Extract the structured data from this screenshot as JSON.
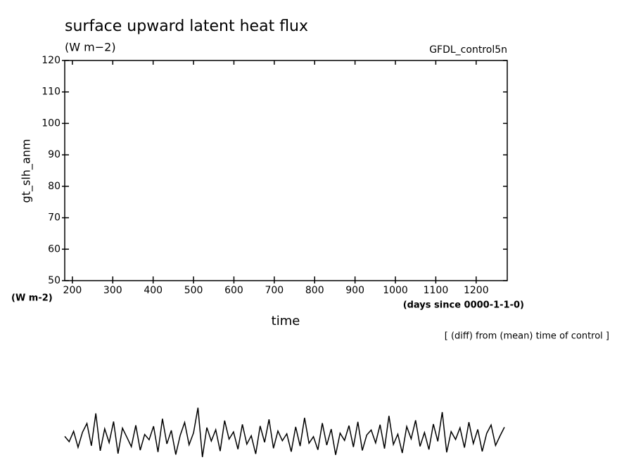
{
  "chart_data": {
    "type": "line",
    "title": "surface upward latent heat flux",
    "subtitle": "(W m−2)",
    "run_label": "GFDL_control5n",
    "y_label": "gt_slh_anm",
    "y_units": "(W m-2)",
    "x_label": "time",
    "x_units": "(days since 0000-1-1-0)",
    "note": "[ (diff) from (mean) time of control ]",
    "xlim": [
      181,
      1277
    ],
    "ylim": [
      50,
      120
    ],
    "xticks": [
      200,
      300,
      400,
      500,
      600,
      700,
      800,
      900,
      1000,
      1100,
      1200
    ],
    "yticks": [
      50,
      60,
      70,
      80,
      90,
      100,
      110,
      120
    ],
    "x": [
      181,
      192,
      203,
      214,
      225,
      236,
      247,
      258,
      269,
      280,
      291,
      302,
      313,
      324,
      335,
      346,
      357,
      368,
      379,
      390,
      401,
      412,
      423,
      434,
      445,
      456,
      467,
      478,
      489,
      500,
      511,
      522,
      533,
      544,
      555,
      566,
      577,
      588,
      599,
      610,
      621,
      632,
      643,
      654,
      665,
      676,
      687,
      698,
      709,
      720,
      731,
      742,
      753,
      764,
      775,
      786,
      797,
      808,
      819,
      830,
      841,
      852,
      863,
      874,
      885,
      896,
      907,
      918,
      929,
      940,
      951,
      962,
      973,
      984,
      995,
      1006,
      1017,
      1028,
      1039,
      1050,
      1061,
      1072,
      1083,
      1094,
      1105,
      1116,
      1127,
      1138,
      1149,
      1160,
      1171,
      1182,
      1193,
      1204,
      1215,
      1226,
      1237,
      1248,
      1259,
      1270
    ],
    "series": [
      {
        "color": "#000000",
        "values": [
          0.5,
          -1.2,
          2.1,
          -3.0,
          1.8,
          4.6,
          -2.5,
          7.8,
          -4.1,
          2.9,
          -1.5,
          5.2,
          -5.0,
          3.1,
          0.2,
          -2.8,
          4.0,
          -3.9,
          1.1,
          -0.6,
          3.7,
          -4.5,
          6.1,
          -1.9,
          2.4,
          -5.3,
          0.8,
          4.9,
          -2.2,
          1.6,
          9.6,
          -6.1,
          3.3,
          -1.0,
          2.6,
          -4.2,
          5.5,
          -0.4,
          1.9,
          -3.6,
          4.3,
          -2.0,
          0.7,
          -5.1,
          3.8,
          -1.4,
          5.9,
          -3.3,
          2.2,
          -0.9,
          1.3,
          -4.4,
          3.5,
          -2.6,
          6.4,
          -1.7,
          0.4,
          -3.8,
          4.7,
          -2.3,
          2.8,
          -5.4,
          1.5,
          -0.8,
          3.9,
          -2.9,
          5.1,
          -4.0,
          0.9,
          2.5,
          -1.6,
          4.2,
          -3.4,
          7.0,
          -2.1,
          1.2,
          -4.8,
          3.6,
          -0.3,
          5.6,
          -2.7,
          1.7,
          -3.7,
          4.4,
          -1.1,
          8.2,
          -4.6,
          2.0,
          -0.5,
          3.2,
          -3.1,
          5.0,
          -1.8,
          2.7,
          -4.3,
          1.4,
          4.1,
          -2.4,
          0.6,
          3.4
        ]
      }
    ]
  }
}
